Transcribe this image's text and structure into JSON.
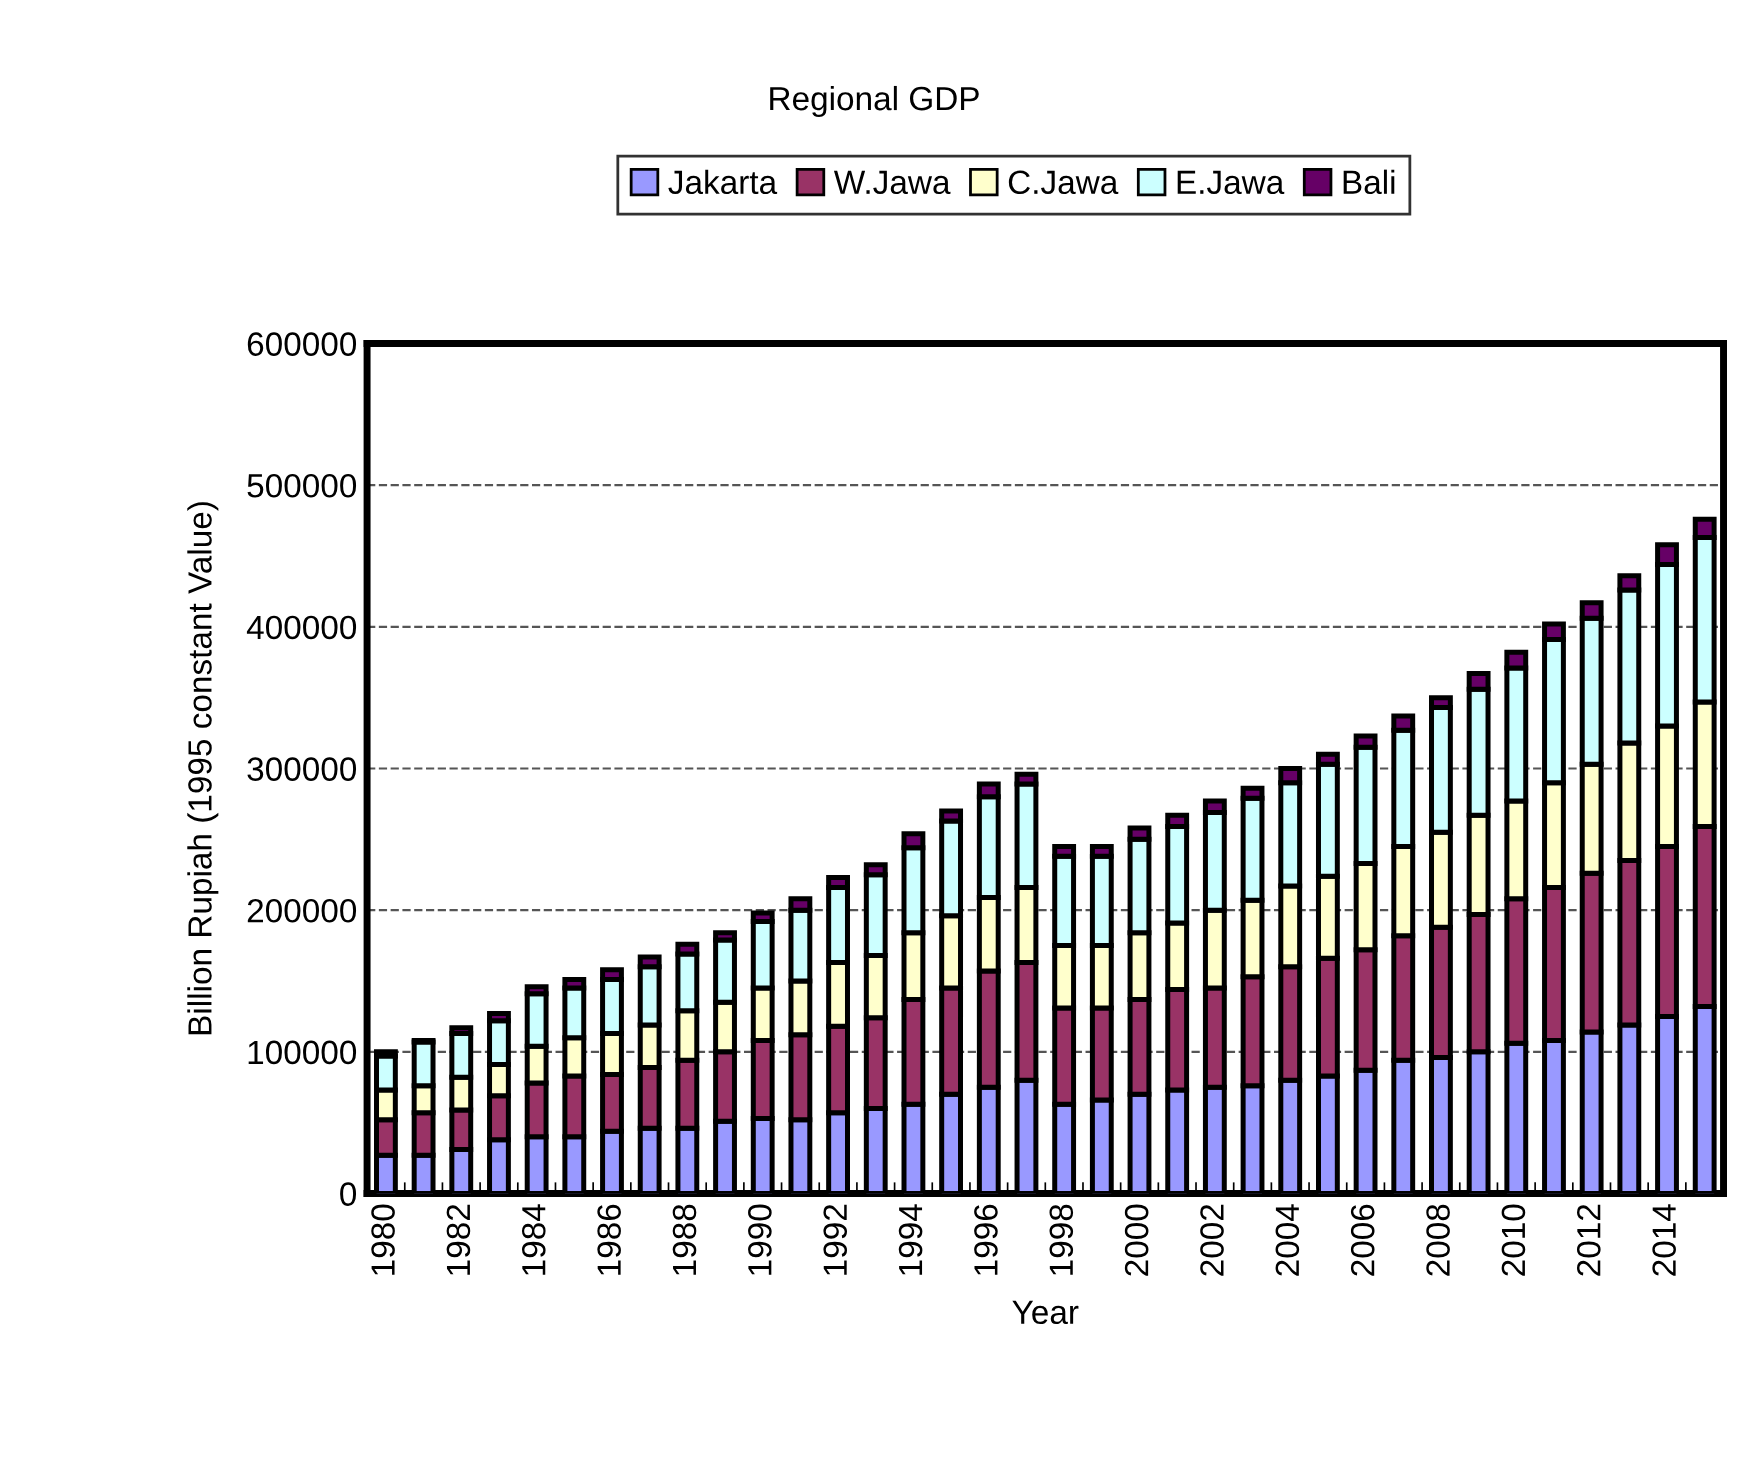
{
  "chart_data": {
    "type": "bar",
    "title": "Regional GDP",
    "xlabel": "Year",
    "ylabel": "Billion Rupiah (1995 constant Value)",
    "stacked": true,
    "legend": "top",
    "grid": "y",
    "ylim": [
      0,
      600000
    ],
    "yticks": [
      0,
      100000,
      200000,
      300000,
      400000,
      500000,
      600000
    ],
    "categories": [
      "1980",
      null,
      "1982",
      null,
      "1984",
      null,
      "1986",
      null,
      "1988",
      null,
      "1990",
      null,
      "1992",
      null,
      "1994",
      null,
      "1996",
      null,
      "1998",
      null,
      "2000",
      null,
      "2002",
      null,
      "2004",
      null,
      "2006",
      null,
      "2008",
      null,
      "2010",
      null,
      "2012",
      null,
      "2014",
      null
    ],
    "series": [
      {
        "name": "Jakarta",
        "color": "#9999ff",
        "values": [
          27000,
          27000,
          31000,
          38000,
          40000,
          40000,
          44000,
          46000,
          46000,
          51000,
          53000,
          52000,
          57000,
          60000,
          63000,
          70000,
          75000,
          80000,
          63000,
          66000,
          70000,
          73000,
          75000,
          76000,
          80000,
          83000,
          87000,
          94000,
          96000,
          100000,
          106000,
          108000,
          114000,
          119000,
          125000,
          132000
        ]
      },
      {
        "name": "W.Jawa",
        "color": "#993366",
        "values": [
          25000,
          30000,
          28000,
          31000,
          38000,
          43000,
          40000,
          43000,
          48000,
          49000,
          55000,
          60000,
          61000,
          64000,
          74000,
          75000,
          82000,
          83000,
          68000,
          65000,
          67000,
          71000,
          70000,
          77000,
          80000,
          83000,
          85000,
          88000,
          92000,
          97000,
          102000,
          108000,
          112000,
          116000,
          120000,
          127000
        ]
      },
      {
        "name": "C.Jawa",
        "color": "#ffffcc",
        "values": [
          21000,
          19000,
          23000,
          22000,
          26000,
          27000,
          29000,
          30000,
          35000,
          35000,
          37000,
          38000,
          45000,
          44000,
          47000,
          51000,
          52000,
          53000,
          44000,
          44000,
          47000,
          47000,
          55000,
          54000,
          57000,
          58000,
          61000,
          63000,
          67000,
          70000,
          69000,
          74000,
          77000,
          83000,
          85000,
          88000
        ]
      },
      {
        "name": "E.Jawa",
        "color": "#ccffff",
        "values": [
          24000,
          31000,
          31000,
          31000,
          37000,
          35000,
          38000,
          41000,
          40000,
          44000,
          47000,
          50000,
          53000,
          57000,
          60000,
          67000,
          71000,
          73000,
          63000,
          63000,
          66000,
          68000,
          69000,
          72000,
          73000,
          79000,
          82000,
          82000,
          88000,
          89000,
          94000,
          101000,
          103000,
          108000,
          114000,
          116000
        ]
      },
      {
        "name": "Bali",
        "color": "#660066",
        "values": [
          3000,
          1000,
          4000,
          5000,
          5000,
          6000,
          7000,
          7000,
          7000,
          5000,
          6000,
          8000,
          7000,
          7000,
          10000,
          7000,
          9000,
          7000,
          7000,
          7000,
          8000,
          8000,
          8000,
          7000,
          10000,
          7000,
          8000,
          10000,
          7000,
          11000,
          11000,
          11000,
          11000,
          10000,
          14000,
          13000
        ]
      }
    ]
  }
}
